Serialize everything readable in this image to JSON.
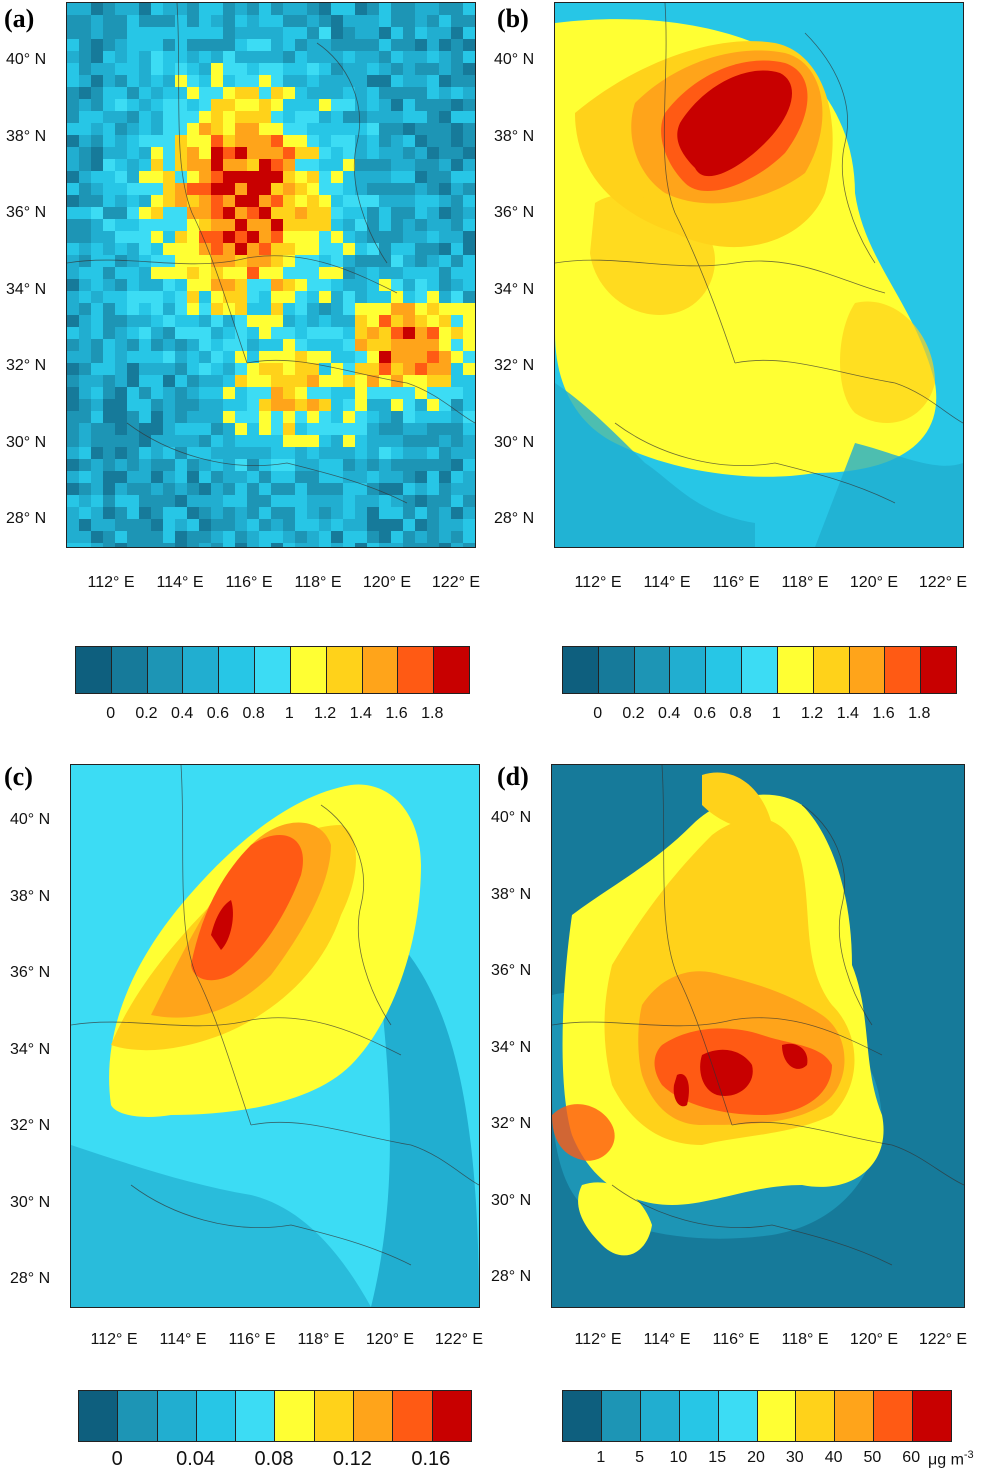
{
  "panels": [
    {
      "label": "(a)",
      "colorbar": [
        "0",
        "0.2",
        "0.4",
        "0.6",
        "0.8",
        "1",
        "1.2",
        "1.4",
        "1.6",
        "1.8"
      ],
      "unit": ""
    },
    {
      "label": "(b)",
      "colorbar": [
        "0",
        "0.2",
        "0.4",
        "0.6",
        "0.8",
        "1",
        "1.2",
        "1.4",
        "1.6",
        "1.8"
      ],
      "unit": ""
    },
    {
      "label": "(c)",
      "colorbar": [
        "0",
        "0.04",
        "0.08",
        "0.12",
        "0.16"
      ],
      "unit": ""
    },
    {
      "label": "(d)",
      "colorbar": [
        "1",
        "5",
        "10",
        "15",
        "20",
        "30",
        "40",
        "50",
        "60"
      ],
      "unit": "μg m",
      "unit_exp": "-3"
    }
  ],
  "lat_ticks": [
    "40° N",
    "38° N",
    "36° N",
    "34° N",
    "32° N",
    "30° N",
    "28° N"
  ],
  "lon_ticks": [
    "112° E",
    "114° E",
    "116° E",
    "118° E",
    "120° E",
    "122° E"
  ],
  "palette_11": [
    "#0e5f7e",
    "#167a9a",
    "#1d95b5",
    "#21aed0",
    "#27c6e6",
    "#3cdcf4",
    "#ffff33",
    "#ffd21a",
    "#ffa41a",
    "#ff5a14",
    "#c80000"
  ],
  "palette_10": [
    "#0e5f7e",
    "#1d95b5",
    "#21aed0",
    "#27c6e6",
    "#3cdcf4",
    "#ffff33",
    "#ffd21a",
    "#ffa41a",
    "#ff5a14",
    "#c80000"
  ]
}
